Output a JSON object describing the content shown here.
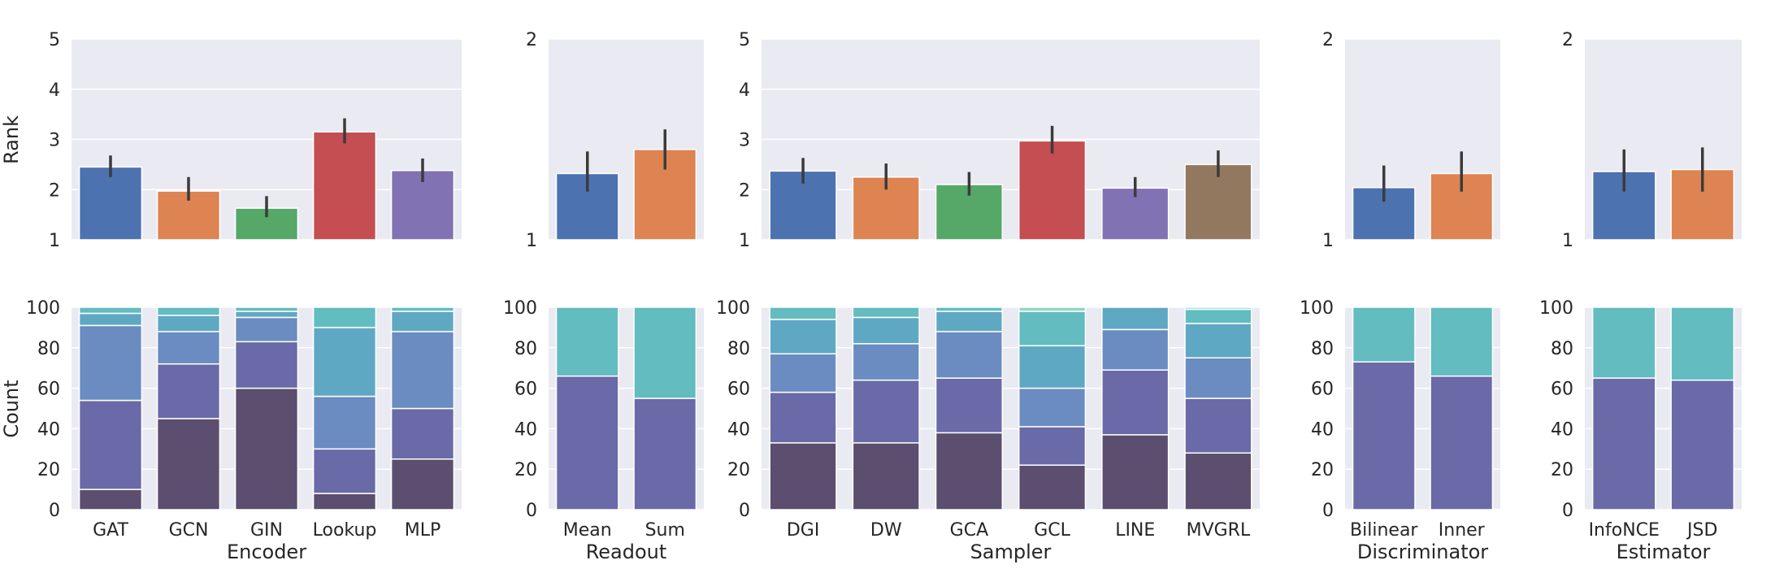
{
  "chart_data": {
    "type": "bar",
    "rank_ylabel": "Rank",
    "count_ylabel": "Count",
    "count_ylim": [
      0,
      100
    ],
    "count_yticks": [
      "0",
      "20",
      "40",
      "60",
      "80",
      "100"
    ],
    "count_colors": [
      "#5b4e6e",
      "#6a6aa8",
      "#6a8cc0",
      "#5fa8c4",
      "#62bcc0",
      "#8ed8c4"
    ],
    "grid": true,
    "panels": [
      {
        "xlabel": "Encoder",
        "categories": [
          "GAT",
          "GCN",
          "GIN",
          "Lookup",
          "MLP"
        ],
        "rank_ylim": [
          1,
          5
        ],
        "rank_yticks": [
          "1",
          "2",
          "3",
          "4",
          "5"
        ],
        "rank_colors": [
          "#4c72b0",
          "#dd8452",
          "#55a868",
          "#c44e52",
          "#8172b3"
        ],
        "rank_values": [
          2.45,
          1.97,
          1.63,
          3.15,
          2.38
        ],
        "rank_err": [
          [
            2.25,
            2.68
          ],
          [
            1.78,
            2.25
          ],
          [
            1.45,
            1.87
          ],
          [
            2.92,
            3.42
          ],
          [
            2.15,
            2.62
          ]
        ],
        "count_stacks": [
          [
            10,
            44,
            37,
            6,
            3
          ],
          [
            45,
            27,
            16,
            8,
            4
          ],
          [
            60,
            23,
            12,
            3,
            2
          ],
          [
            8,
            22,
            26,
            34,
            10
          ],
          [
            25,
            25,
            38,
            10,
            2
          ]
        ]
      },
      {
        "xlabel": "Readout",
        "categories": [
          "Mean",
          "Sum"
        ],
        "rank_ylim": [
          1,
          2
        ],
        "rank_yticks": [
          "1",
          "2"
        ],
        "rank_colors": [
          "#4c72b0",
          "#dd8452"
        ],
        "rank_values": [
          1.33,
          1.45
        ],
        "rank_err": [
          [
            1.24,
            1.44
          ],
          [
            1.35,
            1.55
          ]
        ],
        "count_stacks": [
          [
            0,
            66,
            0,
            0,
            34
          ],
          [
            0,
            55,
            0,
            0,
            45
          ]
        ]
      },
      {
        "xlabel": "Sampler",
        "categories": [
          "DGI",
          "DW",
          "GCA",
          "GCL",
          "LINE",
          "MVGRL"
        ],
        "rank_ylim": [
          1,
          5
        ],
        "rank_yticks": [
          "1",
          "2",
          "3",
          "4",
          "5"
        ],
        "rank_colors": [
          "#4c72b0",
          "#dd8452",
          "#55a868",
          "#c44e52",
          "#8172b3",
          "#937860"
        ],
        "rank_values": [
          2.37,
          2.25,
          2.1,
          2.97,
          2.03,
          2.5
        ],
        "rank_err": [
          [
            2.12,
            2.63
          ],
          [
            2.0,
            2.52
          ],
          [
            1.88,
            2.35
          ],
          [
            2.72,
            3.27
          ],
          [
            1.85,
            2.25
          ],
          [
            2.25,
            2.78
          ]
        ],
        "count_stacks": [
          [
            33,
            25,
            19,
            17,
            6
          ],
          [
            33,
            31,
            18,
            13,
            5
          ],
          [
            38,
            27,
            23,
            10,
            2
          ],
          [
            22,
            19,
            19,
            21,
            17,
            2
          ],
          [
            37,
            32,
            20,
            11
          ],
          [
            28,
            27,
            20,
            17,
            7,
            1
          ]
        ]
      },
      {
        "xlabel": "Discriminator",
        "categories": [
          "Bilinear",
          "Inner"
        ],
        "rank_ylim": [
          1,
          2
        ],
        "rank_yticks": [
          "1",
          "2"
        ],
        "rank_colors": [
          "#4c72b0",
          "#dd8452"
        ],
        "rank_values": [
          1.26,
          1.33
        ],
        "rank_err": [
          [
            1.19,
            1.37
          ],
          [
            1.24,
            1.44
          ]
        ],
        "count_stacks": [
          [
            0,
            73,
            0,
            0,
            27
          ],
          [
            0,
            66,
            0,
            0,
            34
          ]
        ]
      },
      {
        "xlabel": "Estimator",
        "categories": [
          "InfoNCE",
          "JSD"
        ],
        "rank_ylim": [
          1,
          2
        ],
        "rank_yticks": [
          "1",
          "2"
        ],
        "rank_colors": [
          "#4c72b0",
          "#dd8452"
        ],
        "rank_values": [
          1.34,
          1.35
        ],
        "rank_err": [
          [
            1.24,
            1.45
          ],
          [
            1.24,
            1.46
          ]
        ],
        "count_stacks": [
          [
            0,
            65,
            0,
            0,
            35
          ],
          [
            0,
            64,
            0,
            0,
            36
          ]
        ]
      }
    ]
  }
}
